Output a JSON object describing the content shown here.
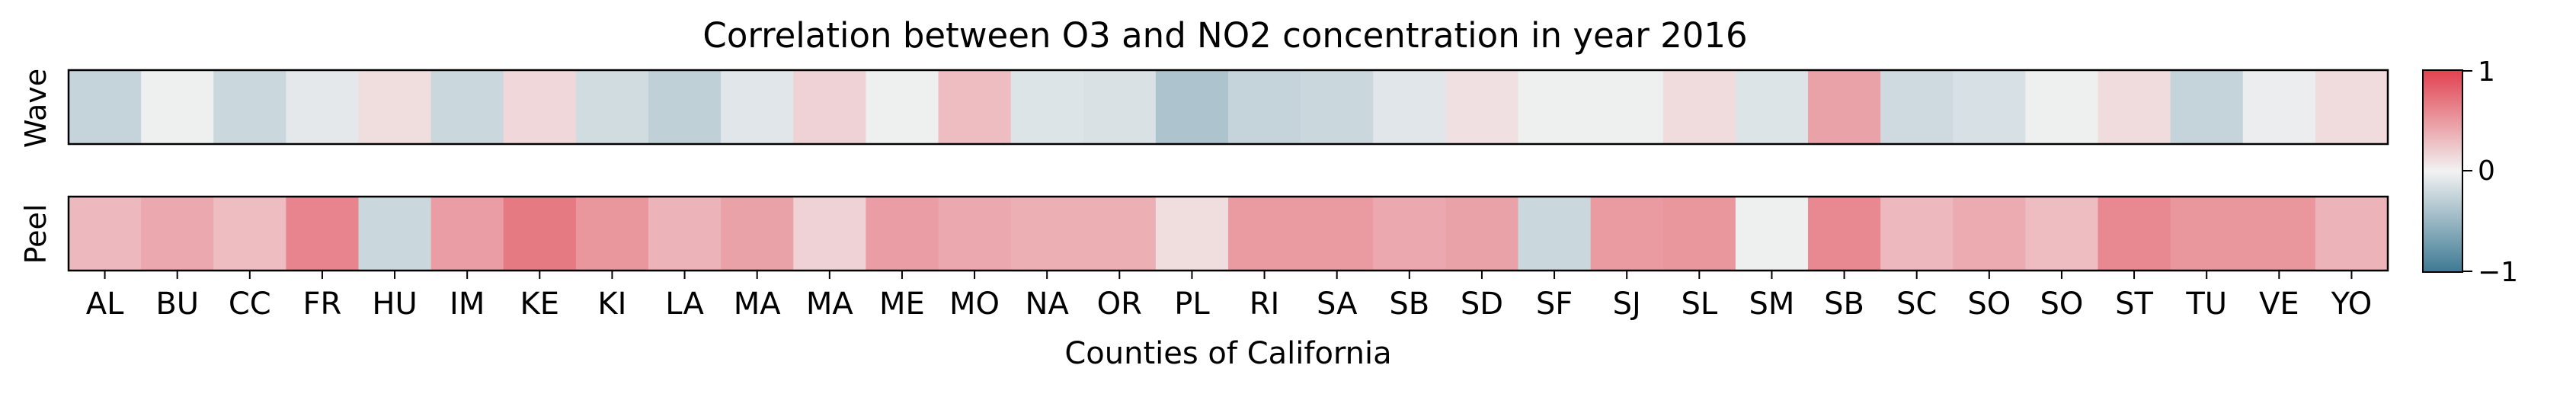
{
  "chart_data": {
    "type": "heatmap",
    "title": "Correlation between O3 and NO2 concentration in year 2016",
    "xlabel": "Counties of California",
    "categories": [
      "AL",
      "BU",
      "CC",
      "FR",
      "HU",
      "IM",
      "KE",
      "KI",
      "LA",
      "MA",
      "MA",
      "ME",
      "MO",
      "NA",
      "OR",
      "PL",
      "RI",
      "SA",
      "SB",
      "SD",
      "SF",
      "SJ",
      "SL",
      "SM",
      "SB",
      "SC",
      "SO",
      "SO",
      "ST",
      "TU",
      "VE",
      "YO"
    ],
    "series": [
      {
        "name": "Wave",
        "values": [
          -0.25,
          -0.02,
          -0.22,
          -0.08,
          0.12,
          -0.22,
          0.15,
          -0.18,
          -0.28,
          -0.1,
          0.18,
          -0.02,
          0.3,
          -0.12,
          -0.14,
          -0.38,
          -0.25,
          -0.22,
          -0.1,
          0.1,
          -0.02,
          -0.02,
          0.13,
          -0.12,
          0.45,
          -0.2,
          -0.15,
          -0.02,
          0.13,
          -0.25,
          -0.04,
          0.13
        ]
      },
      {
        "name": "Peel",
        "values": [
          0.32,
          0.42,
          0.3,
          0.62,
          -0.22,
          0.48,
          0.68,
          0.52,
          0.35,
          0.45,
          0.18,
          0.48,
          0.42,
          0.38,
          0.38,
          0.12,
          0.5,
          0.5,
          0.42,
          0.45,
          -0.22,
          0.5,
          0.52,
          -0.02,
          0.6,
          0.32,
          0.4,
          0.3,
          0.6,
          0.52,
          0.52,
          0.35
        ]
      }
    ],
    "colorbar": {
      "ticks": [
        "1",
        "0",
        "−1"
      ],
      "range": [
        -1,
        1
      ]
    },
    "colors": {
      "negative": "#3d7a93",
      "neutral": "#f2f2f2",
      "positive": "#e1414f"
    }
  }
}
